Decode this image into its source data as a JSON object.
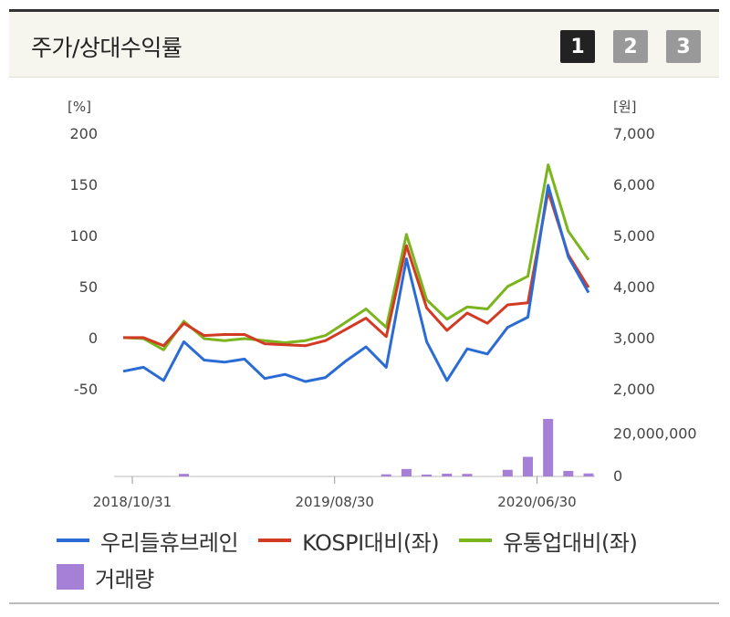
{
  "header": {
    "title": "주가/상대수익률",
    "pages": [
      "1",
      "2",
      "3"
    ],
    "active_page": 0
  },
  "chart_data": {
    "type": "line",
    "left_axis": {
      "label": "[%]",
      "ticks": [
        "200",
        "150",
        "100",
        "50",
        "0",
        "-50"
      ],
      "range": [
        -75,
        200
      ]
    },
    "right_axis": {
      "label": "[원]",
      "ticks": [
        "7,000",
        "6,000",
        "5,000",
        "4,000",
        "3,000",
        "2,000"
      ],
      "range": [
        1550,
        7000
      ]
    },
    "volume_axis": {
      "ticks": [
        "20,000,000",
        "0"
      ],
      "range": [
        0,
        30000000
      ]
    },
    "x_labels": [
      "2018/10/31",
      "2019/08/30",
      "2020/06/30"
    ],
    "series": [
      {
        "name": "우리들휴브레인",
        "color": "#2b6cd4",
        "values": [
          -32,
          -28,
          -41,
          -3,
          -21,
          -23,
          -20,
          -39,
          -35,
          -42,
          -38,
          -22,
          -8,
          -28,
          78,
          -3,
          -41,
          -10,
          -15,
          11,
          21,
          150,
          80,
          45
        ]
      },
      {
        "name": "KOSPI대비(좌)",
        "color": "#d33a24",
        "values": [
          1,
          1,
          -7,
          15,
          3,
          4,
          4,
          -5,
          -6,
          -7,
          -2,
          9,
          20,
          2,
          91,
          30,
          8,
          25,
          15,
          33,
          35,
          144,
          82,
          50
        ]
      },
      {
        "name": "유통업대비(좌)",
        "color": "#7ab51d",
        "values": [
          1,
          0,
          -11,
          17,
          0,
          -2,
          0,
          -2,
          -4,
          -2,
          3,
          16,
          29,
          11,
          102,
          38,
          19,
          31,
          29,
          51,
          61,
          170,
          105,
          77
        ]
      }
    ],
    "volume": {
      "name": "거래량",
      "color": "#a67fd6",
      "values": [
        0,
        0,
        0,
        1200000,
        0,
        0,
        0,
        0,
        0,
        0,
        0,
        0,
        0,
        1000000,
        3500000,
        900000,
        1300000,
        1200000,
        0,
        3100000,
        9200000,
        27000000,
        2600000,
        1400000
      ]
    }
  },
  "legend": {
    "items": [
      {
        "label": "우리들휴브레인",
        "color": "#2b6cd4",
        "kind": "line"
      },
      {
        "label": "KOSPI대비(좌)",
        "color": "#d33a24",
        "kind": "line"
      },
      {
        "label": "유통업대비(좌)",
        "color": "#7ab51d",
        "kind": "line"
      },
      {
        "label": "거래량",
        "color": "#a67fd6",
        "kind": "box"
      }
    ]
  }
}
